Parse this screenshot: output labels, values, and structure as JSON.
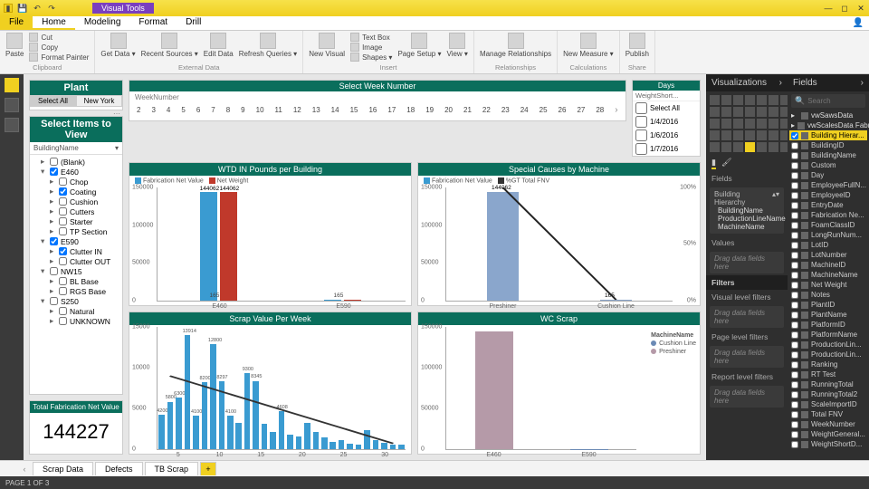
{
  "titlebar": {
    "doc_title": "Visual Tools"
  },
  "menu": {
    "file": "File",
    "home": "Home",
    "modeling": "Modeling",
    "format": "Format",
    "drill": "Drill"
  },
  "ribbon": {
    "clipboard": {
      "cut": "Cut",
      "copy": "Copy",
      "fp": "Format Painter",
      "paste": "Paste",
      "label": "Clipboard"
    },
    "extdata": {
      "get": "Get Data ▾",
      "recent": "Recent Sources ▾",
      "edit": "Edit Data",
      "refresh": "Refresh Queries ▾",
      "label": "External Data"
    },
    "insert": {
      "newvis": "New Visual",
      "textbox": "Text Box",
      "image": "Image",
      "shapes": "Shapes ▾",
      "page": "Page Setup ▾",
      "label": "Insert"
    },
    "rel": {
      "manage": "Manage Relationships",
      "label": "Relationships"
    },
    "calc": {
      "measure": "New Measure ▾",
      "label": "Calculations"
    },
    "share": {
      "publish": "Publish",
      "label": "Share"
    },
    "view": {
      "view": "View ▾"
    }
  },
  "plant": {
    "title": "Plant",
    "selectall": "Select All",
    "location": "New York"
  },
  "select_items": {
    "title": "Select Items to View",
    "field": "BuildingName",
    "rows": [
      {
        "label": "(Blank)",
        "indent": 1,
        "checked": false,
        "exp": "▸"
      },
      {
        "label": "E460",
        "indent": 1,
        "checked": true,
        "exp": "▾"
      },
      {
        "label": "Chop",
        "indent": 2,
        "checked": false,
        "exp": "▸"
      },
      {
        "label": "Coating",
        "indent": 2,
        "checked": true,
        "exp": "▸"
      },
      {
        "label": "Cushion",
        "indent": 2,
        "checked": false,
        "exp": "▸"
      },
      {
        "label": "Cutters",
        "indent": 2,
        "checked": false,
        "exp": "▸"
      },
      {
        "label": "Starter",
        "indent": 2,
        "checked": false,
        "exp": "▸"
      },
      {
        "label": "TP Section",
        "indent": 2,
        "checked": false,
        "exp": "▸"
      },
      {
        "label": "E590",
        "indent": 1,
        "checked": true,
        "exp": "▾"
      },
      {
        "label": "Clutter IN",
        "indent": 2,
        "checked": true,
        "exp": "▸"
      },
      {
        "label": "Clutter OUT",
        "indent": 2,
        "checked": false,
        "exp": "▸"
      },
      {
        "label": "NW15",
        "indent": 1,
        "checked": false,
        "exp": "▾"
      },
      {
        "label": "BL Base",
        "indent": 2,
        "checked": false,
        "exp": "▸"
      },
      {
        "label": "RGS Base",
        "indent": 2,
        "checked": false,
        "exp": "▸"
      },
      {
        "label": "S250",
        "indent": 1,
        "checked": false,
        "exp": "▾"
      },
      {
        "label": "Natural",
        "indent": 2,
        "checked": false,
        "exp": "▸"
      },
      {
        "label": "UNKNOWN",
        "indent": 2,
        "checked": false,
        "exp": "▸"
      }
    ]
  },
  "kpi": {
    "label": "Total Fabrication Net Value",
    "value": "144227"
  },
  "week": {
    "title": "Select Week Number",
    "sub": "WeekNumber",
    "nums": [
      "2",
      "3",
      "4",
      "5",
      "6",
      "7",
      "8",
      "9",
      "10",
      "11",
      "12",
      "13",
      "14",
      "15",
      "16",
      "17",
      "18",
      "19",
      "20",
      "21",
      "22",
      "23",
      "24",
      "25",
      "26",
      "27",
      "28"
    ]
  },
  "days": {
    "title": "Days",
    "field": "WeightShort...",
    "selectall": "Select All",
    "rows": [
      "1/4/2016",
      "1/6/2016",
      "1/7/2016"
    ]
  },
  "chart_wtd": {
    "title": "WTD IN Pounds per Building",
    "legend": [
      {
        "label": "Fabrication Net Value",
        "color": "#3a9bd1"
      },
      {
        "label": "Net Weight",
        "color": "#c0392b"
      }
    ],
    "ymax": 150000,
    "yticks": [
      "150000",
      "100000",
      "50000",
      "0"
    ],
    "cats": [
      {
        "name": "E460",
        "v1": 144062,
        "v2": 144062,
        "c1": "#3a9bd1",
        "c2": "#c0392b",
        "lbl1": "144062",
        "lbl2": "144062",
        "foot": "165"
      },
      {
        "name": "E590",
        "v1": 165,
        "v2": 165,
        "c1": "#3a9bd1",
        "c2": "#c0392b",
        "lbl1": "",
        "lbl2": "",
        "foot": "165"
      }
    ]
  },
  "chart_special": {
    "title": "Special Causes by Machine",
    "legend": [
      {
        "label": "Fabrication Net Value",
        "color": "#3a9bd1"
      },
      {
        "label": "%GT Total FNV",
        "color": "#333"
      }
    ],
    "ymax": 150000,
    "yticks": [
      "150000",
      "100000",
      "50000",
      "0"
    ],
    "pct_ticks": [
      "100%",
      "50%",
      "0%"
    ],
    "cats": [
      {
        "name": "Preshiner",
        "v": 144062,
        "pct": 100,
        "c": "#8aa6cc",
        "lbl": "144062"
      },
      {
        "name": "Cushion Line",
        "v": 165,
        "pct": 0.1,
        "c": "#8aa6cc",
        "lbl": "165"
      }
    ],
    "line_color": "#222"
  },
  "chart_scrap": {
    "title": "Scrap Value Per Week",
    "ymax": 15000,
    "yticks": [
      "15000",
      "10000",
      "5000",
      "0"
    ],
    "bar_color": "#3a9bd1",
    "bars": [
      4200,
      5800,
      6300,
      13914,
      4100,
      8200,
      12800,
      8297,
      4100,
      3200,
      9300,
      8345,
      3100,
      2100,
      4608,
      1800,
      1500,
      3200,
      2100,
      1400,
      900,
      1100,
      700,
      600,
      2300,
      1100,
      800,
      600,
      500
    ],
    "xcats": [
      "5",
      "10",
      "15",
      "20",
      "25",
      "30"
    ],
    "peak_label": "13914",
    "trend_color": "#333"
  },
  "chart_wc": {
    "title": "WC Scrap",
    "ymax": 150000,
    "yticks": [
      "150000",
      "100000",
      "50000",
      "0"
    ],
    "legend_title": "MachineName",
    "legend": [
      {
        "label": "Cushion Line",
        "color": "#6b8ab5"
      },
      {
        "label": "Preshiner",
        "color": "#b59aa8"
      }
    ],
    "cats": [
      {
        "name": "E460",
        "v": 144000,
        "c": "#b59aa8"
      },
      {
        "name": "E590",
        "v": 200,
        "c": "#6b8ab5"
      }
    ]
  },
  "pages": {
    "p1": "Scrap Data",
    "p2": "Defects",
    "p3": "TB Scrap"
  },
  "status": {
    "text": "PAGE 1 OF 3"
  },
  "vizpane": {
    "title": "Visualizations",
    "fields_label": "Fields",
    "hierarchy_title": "Building Hierarchy",
    "hierarchy": [
      "BuildingName",
      "ProductionLineName",
      "MachineName"
    ],
    "values_label": "Values",
    "values_hint": "Drag data fields here",
    "filters_label": "Filters",
    "vlf": "Visual level filters",
    "vlf_hint": "Drag data fields here",
    "plf": "Page level filters",
    "plf_hint": "Drag data fields here",
    "rlf": "Report level filters",
    "rlf_hint": "Drag data fields here"
  },
  "fieldspane": {
    "title": "Fields",
    "search_ph": "Search",
    "tables": [
      {
        "name": "vwSawsData",
        "type": "table"
      },
      {
        "name": "vwScalesData Fabric...",
        "type": "table",
        "sel": false
      },
      {
        "name": "Building Hierar...",
        "sel": true,
        "checked": true
      },
      {
        "name": "BuildingID"
      },
      {
        "name": "BuildingName"
      },
      {
        "name": "Custom"
      },
      {
        "name": "Day"
      },
      {
        "name": "EmployeeFullN..."
      },
      {
        "name": "EmployeeID"
      },
      {
        "name": "EntryDate"
      },
      {
        "name": "Fabrication Ne..."
      },
      {
        "name": "FoamClassID"
      },
      {
        "name": "LongRunNum..."
      },
      {
        "name": "LotID"
      },
      {
        "name": "LotNumber"
      },
      {
        "name": "MachineID"
      },
      {
        "name": "MachineName"
      },
      {
        "name": "Net Weight"
      },
      {
        "name": "Notes"
      },
      {
        "name": "PlantID"
      },
      {
        "name": "PlantName"
      },
      {
        "name": "PlatformID"
      },
      {
        "name": "PlatformName"
      },
      {
        "name": "ProductionLin..."
      },
      {
        "name": "ProductionLin..."
      },
      {
        "name": "Ranking"
      },
      {
        "name": "RT Test"
      },
      {
        "name": "RunningTotal"
      },
      {
        "name": "RunningTotal2"
      },
      {
        "name": "ScaleImportID"
      },
      {
        "name": "Total FNV"
      },
      {
        "name": "WeekNumber"
      },
      {
        "name": "WeightGeneral..."
      },
      {
        "name": "WeightShortD..."
      }
    ]
  }
}
